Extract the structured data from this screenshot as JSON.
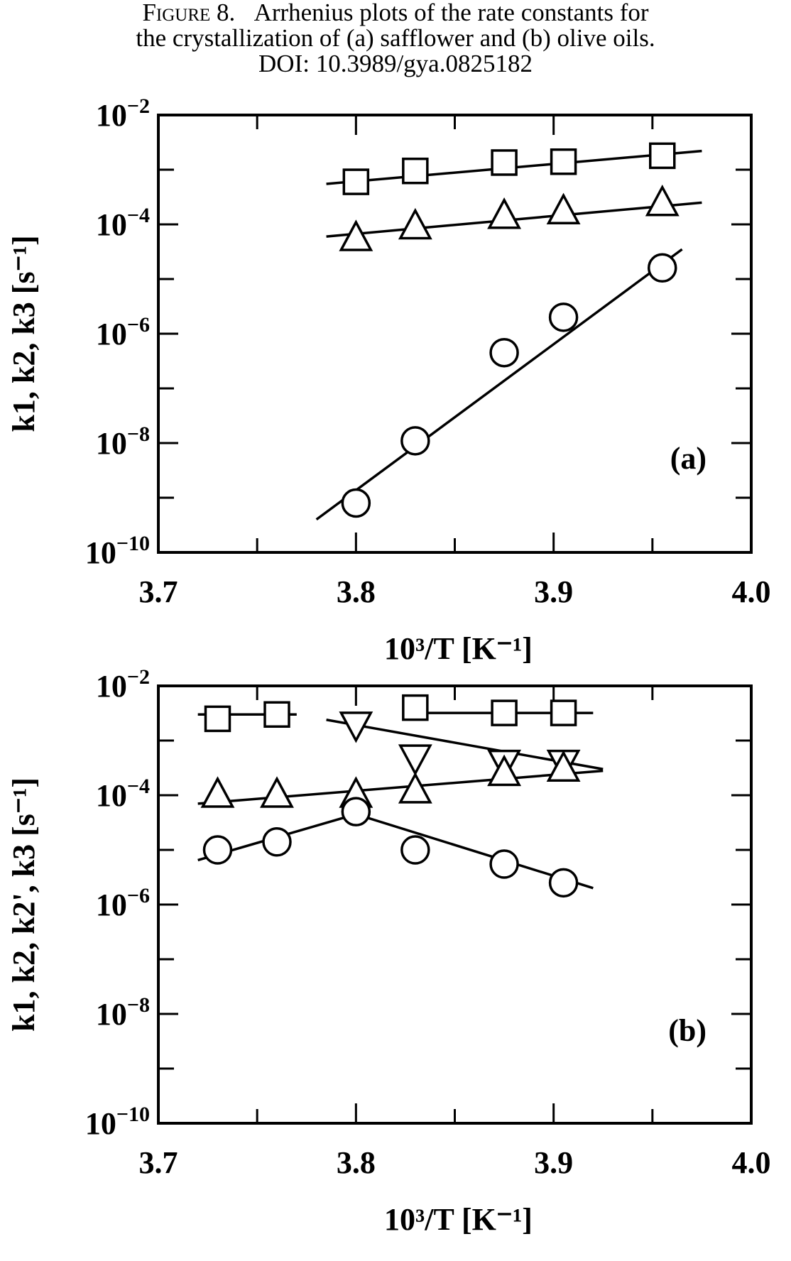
{
  "caption": {
    "figure_label": "Figure 8.",
    "line1": "Arrhenius plots of the rate constants for",
    "line2": "the crystallization of (a) safflower and (b) olive oils.",
    "line3": "DOI: 10.3989/gya.0825182"
  },
  "chart_data": [
    {
      "type": "scatter",
      "panel_label": "(a)",
      "xlabel": "10³/T [K⁻¹]",
      "ylabel": "k1, k2, k3 [s⁻¹]",
      "xlim": [
        3.7,
        4.0
      ],
      "ylim": [
        1e-10,
        0.01
      ],
      "yscale": "log",
      "x_ticks": [
        "3.7",
        "3.8",
        "3.9",
        "4.0"
      ],
      "y_ticks": [
        {
          "base": "10",
          "exp": "−2"
        },
        {
          "base": "10",
          "exp": "−4"
        },
        {
          "base": "10",
          "exp": "−6"
        },
        {
          "base": "10",
          "exp": "−8"
        },
        {
          "base": "10",
          "exp": "−10"
        }
      ],
      "series": [
        {
          "marker": "square",
          "x": [
            3.8,
            3.83,
            3.875,
            3.905,
            3.955
          ],
          "y": [
            0.0006,
            0.00095,
            0.00135,
            0.0014,
            0.0018
          ],
          "fit": {
            "x": [
              3.785,
              3.975
            ],
            "y": [
              0.00055,
              0.0022
            ]
          }
        },
        {
          "marker": "triangle-up",
          "x": [
            3.8,
            3.83,
            3.875,
            3.905,
            3.955
          ],
          "y": [
            5.5e-05,
            9e-05,
            0.00014,
            0.00017,
            0.00024
          ],
          "fit": {
            "x": [
              3.785,
              3.975
            ],
            "y": [
              6e-05,
              0.00025
            ]
          }
        },
        {
          "marker": "circle",
          "x": [
            3.8,
            3.83,
            3.875,
            3.905,
            3.955
          ],
          "y": [
            8e-10,
            1.1e-08,
            4.5e-07,
            2e-06,
            1.6e-05
          ],
          "fit": {
            "x": [
              3.78,
              3.965
            ],
            "y": [
              4e-10,
              3.5e-05
            ]
          }
        }
      ]
    },
    {
      "type": "scatter",
      "panel_label": "(b)",
      "xlabel": "10³/T [K⁻¹]",
      "ylabel": "k1, k2, k2', k3 [s⁻¹]",
      "xlim": [
        3.7,
        4.0
      ],
      "ylim": [
        1e-10,
        0.01
      ],
      "yscale": "log",
      "x_ticks": [
        "3.7",
        "3.8",
        "3.9",
        "4.0"
      ],
      "y_ticks": [
        {
          "base": "10",
          "exp": "−2"
        },
        {
          "base": "10",
          "exp": "−4"
        },
        {
          "base": "10",
          "exp": "−6"
        },
        {
          "base": "10",
          "exp": "−8"
        },
        {
          "base": "10",
          "exp": "−10"
        }
      ],
      "series": [
        {
          "marker": "square",
          "x": [
            3.73,
            3.76,
            3.83,
            3.875,
            3.905
          ],
          "y": [
            0.0025,
            0.003,
            0.004,
            0.0032,
            0.0032
          ],
          "fit_segments": [
            {
              "x": [
                3.72,
                3.77
              ],
              "y": [
                0.003,
                0.003
              ]
            },
            {
              "x": [
                3.825,
                3.92
              ],
              "y": [
                0.0032,
                0.0032
              ]
            }
          ]
        },
        {
          "marker": "triangle-down",
          "x": [
            3.8,
            3.83,
            3.875,
            3.905
          ],
          "y": [
            0.002,
            0.0005,
            0.0004,
            0.0004
          ],
          "fit_segments": [
            {
              "x": [
                3.785,
                3.925
              ],
              "y": [
                0.0024,
                0.0003
              ]
            }
          ]
        },
        {
          "marker": "triangle-up",
          "x": [
            3.73,
            3.76,
            3.8,
            3.83,
            3.875,
            3.905
          ],
          "y": [
            0.0001,
            0.0001,
            0.0001,
            0.00012,
            0.00025,
            0.0003
          ],
          "fit_segments": [
            {
              "x": [
                3.72,
                3.925
              ],
              "y": [
                7e-05,
                0.00028
              ]
            }
          ]
        },
        {
          "marker": "circle",
          "x": [
            3.73,
            3.76,
            3.8,
            3.83,
            3.875,
            3.905
          ],
          "y": [
            1e-05,
            1.4e-05,
            5e-05,
            1e-05,
            5.5e-06,
            2.5e-06
          ],
          "fit_segments": [
            {
              "x": [
                3.72,
                3.8
              ],
              "y": [
                6.5e-06,
                4.5e-05
              ]
            },
            {
              "x": [
                3.8,
                3.92
              ],
              "y": [
                4.5e-05,
                2e-06
              ]
            }
          ]
        }
      ]
    }
  ]
}
